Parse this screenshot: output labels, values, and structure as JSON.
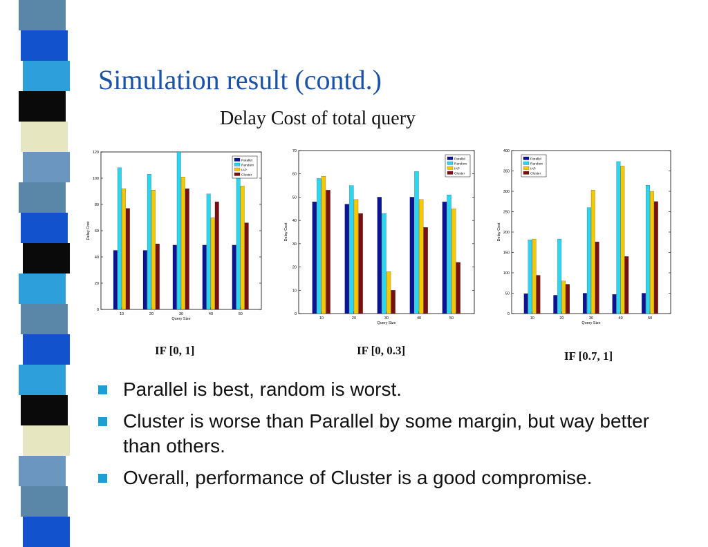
{
  "slide": {
    "title": "Simulation result (contd.)",
    "subtitle": "Delay Cost of total query",
    "bullets": [
      "Parallel is best, random is worst.",
      "Cluster is worse than Parallel by some margin, but way better than others.",
      "Overall, performance of Cluster is a good compromise."
    ],
    "colors": {
      "title": "#1a52a8",
      "bullet_marker": "#1e9fd4",
      "parallel": "#0a1494",
      "random": "#2ad6f0",
      "iap": "#f5c800",
      "cluster": "#7a0f10"
    },
    "decor": {
      "stripe_colors": [
        "#5a86a8",
        "#1252cc",
        "#2da0dc",
        "#0a0a0a",
        "#e6e6c0",
        "#6a96c0",
        "#5a86a8",
        "#1252cc",
        "#0a0a0a",
        "#2da0dc"
      ]
    }
  },
  "chart_data": [
    {
      "type": "bar",
      "caption": "IF [0, 1]",
      "xlabel": "Query Size",
      "ylabel": "Delay Cost",
      "categories": [
        "10",
        "20",
        "30",
        "40",
        "50"
      ],
      "ylim": [
        0,
        120
      ],
      "yticks": [
        0,
        20,
        40,
        60,
        80,
        100,
        120
      ],
      "legend_position": "top-right",
      "series": [
        {
          "name": "Parallel",
          "color": "#0a1494",
          "values": [
            45,
            45,
            49,
            49,
            49
          ]
        },
        {
          "name": "Random",
          "color": "#2ad6f0",
          "values": [
            108,
            103,
            120,
            88,
            112
          ]
        },
        {
          "name": "IAP",
          "color": "#f5c800",
          "values": [
            92,
            91,
            101,
            70,
            94
          ]
        },
        {
          "name": "Cluster",
          "color": "#7a0f10",
          "values": [
            77,
            50,
            92,
            82,
            66
          ]
        }
      ]
    },
    {
      "type": "bar",
      "caption": "IF [0, 0.3]",
      "xlabel": "Query Size",
      "ylabel": "Delay Cost",
      "categories": [
        "10",
        "20",
        "30",
        "40",
        "50"
      ],
      "ylim": [
        0,
        70
      ],
      "yticks": [
        0,
        10,
        20,
        30,
        40,
        50,
        60,
        70
      ],
      "legend_position": "top-right",
      "series": [
        {
          "name": "Parallel",
          "color": "#0a1494",
          "values": [
            48,
            47,
            50,
            50,
            48
          ]
        },
        {
          "name": "Random",
          "color": "#2ad6f0",
          "values": [
            58,
            55,
            43,
            61,
            51
          ]
        },
        {
          "name": "IAP",
          "color": "#f5c800",
          "values": [
            59,
            49,
            18,
            49,
            45
          ]
        },
        {
          "name": "Cluster",
          "color": "#7a0f10",
          "values": [
            53,
            43,
            10,
            37,
            22
          ]
        }
      ]
    },
    {
      "type": "bar",
      "caption": "IF [0.7, 1]",
      "xlabel": "Query Size",
      "ylabel": "Delay Cost",
      "categories": [
        "10",
        "20",
        "30",
        "40",
        "50"
      ],
      "ylim": [
        0,
        400
      ],
      "yticks": [
        0,
        50,
        100,
        150,
        200,
        250,
        300,
        350,
        400
      ],
      "legend_position": "top-left",
      "series": [
        {
          "name": "Parallel",
          "color": "#0a1494",
          "values": [
            49,
            45,
            50,
            47,
            50
          ]
        },
        {
          "name": "Random",
          "color": "#2ad6f0",
          "values": [
            181,
            183,
            260,
            373,
            315
          ]
        },
        {
          "name": "IAP",
          "color": "#f5c800",
          "values": [
            183,
            80,
            303,
            362,
            300
          ]
        },
        {
          "name": "Cluster",
          "color": "#7a0f10",
          "values": [
            94,
            72,
            176,
            140,
            275
          ]
        }
      ]
    }
  ]
}
